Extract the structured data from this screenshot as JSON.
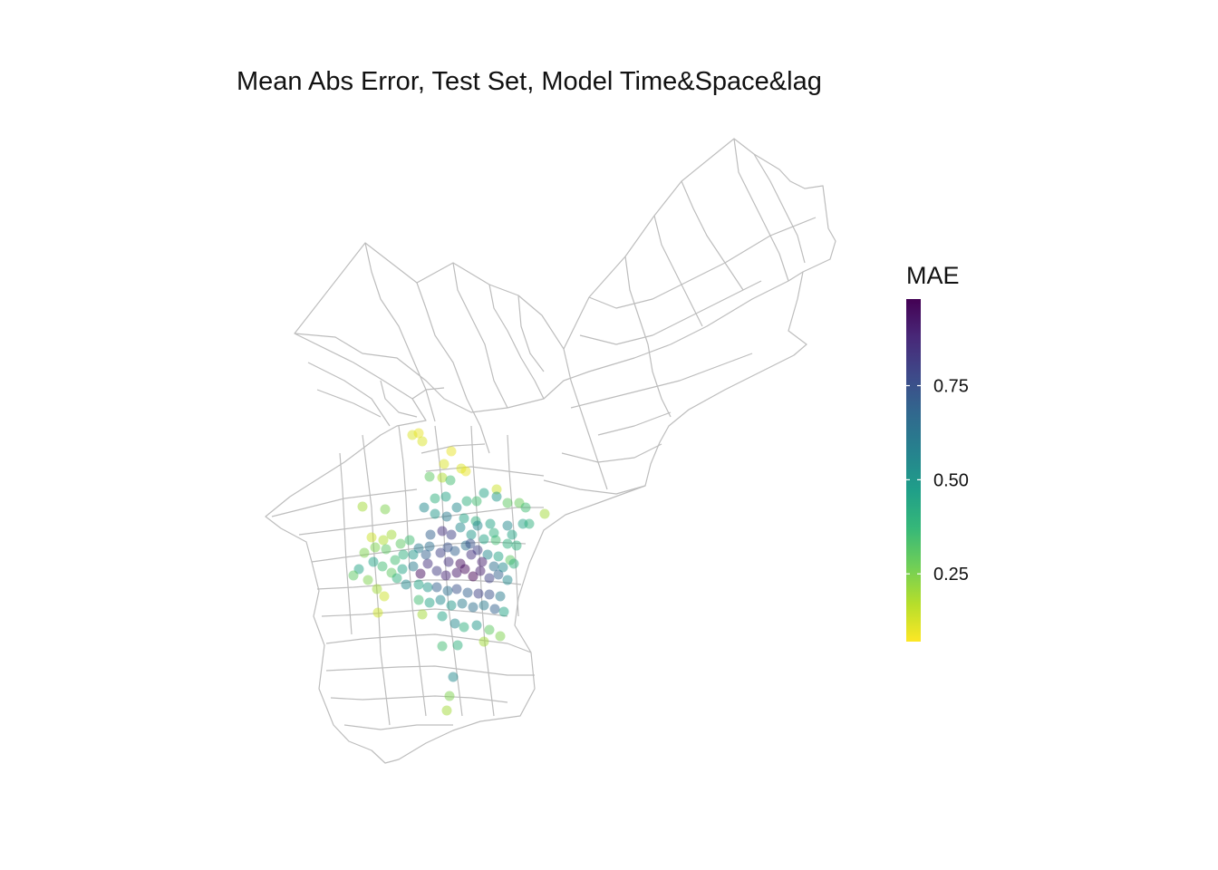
{
  "title": "Mean Abs Error, Test Set, Model Time&Space&lag",
  "legend": {
    "title": "MAE",
    "min": 0.07,
    "max": 0.98,
    "ticks": [
      {
        "value": 0.25,
        "label": "0.25"
      },
      {
        "value": 0.5,
        "label": "0.50"
      },
      {
        "value": 0.75,
        "label": "0.75"
      }
    ],
    "palette": [
      "#fde725",
      "#b5de2b",
      "#6ece58",
      "#35b779",
      "#1f9e89",
      "#26828e",
      "#31688e",
      "#3e4989",
      "#482878",
      "#440154"
    ]
  },
  "map": {
    "boundary_color": "#bdbdbd",
    "point_opacity": 0.5
  },
  "points": [
    [
      455,
      480,
      0.12
    ],
    [
      462,
      478,
      0.1
    ],
    [
      466,
      487,
      0.12
    ],
    [
      498,
      498,
      0.1
    ],
    [
      490,
      512,
      0.12
    ],
    [
      509,
      517,
      0.12
    ],
    [
      514,
      520,
      0.1
    ],
    [
      488,
      527,
      0.18
    ],
    [
      474,
      526,
      0.3
    ],
    [
      497,
      530,
      0.35
    ],
    [
      548,
      540,
      0.14
    ],
    [
      534,
      544,
      0.45
    ],
    [
      548,
      548,
      0.5
    ],
    [
      515,
      553,
      0.4
    ],
    [
      526,
      553,
      0.35
    ],
    [
      504,
      560,
      0.55
    ],
    [
      560,
      555,
      0.3
    ],
    [
      573,
      555,
      0.28
    ],
    [
      580,
      560,
      0.35
    ],
    [
      601,
      567,
      0.2
    ],
    [
      468,
      560,
      0.55
    ],
    [
      480,
      567,
      0.5
    ],
    [
      493,
      570,
      0.6
    ],
    [
      512,
      572,
      0.45
    ],
    [
      525,
      575,
      0.4
    ],
    [
      541,
      578,
      0.45
    ],
    [
      560,
      580,
      0.55
    ],
    [
      577,
      578,
      0.45
    ],
    [
      584,
      578,
      0.4
    ],
    [
      400,
      559,
      0.2
    ],
    [
      425,
      562,
      0.25
    ],
    [
      475,
      590,
      0.7
    ],
    [
      488,
      586,
      0.85
    ],
    [
      498,
      590,
      0.8
    ],
    [
      508,
      582,
      0.55
    ],
    [
      520,
      590,
      0.5
    ],
    [
      534,
      595,
      0.45
    ],
    [
      547,
      596,
      0.35
    ],
    [
      560,
      600,
      0.4
    ],
    [
      570,
      602,
      0.4
    ],
    [
      410,
      593,
      0.14
    ],
    [
      423,
      596,
      0.18
    ],
    [
      432,
      590,
      0.2
    ],
    [
      442,
      600,
      0.3
    ],
    [
      452,
      596,
      0.35
    ],
    [
      462,
      605,
      0.6
    ],
    [
      474,
      603,
      0.65
    ],
    [
      486,
      610,
      0.8
    ],
    [
      494,
      604,
      0.75
    ],
    [
      502,
      608,
      0.7
    ],
    [
      514,
      602,
      0.65
    ],
    [
      527,
      607,
      0.8
    ],
    [
      538,
      612,
      0.55
    ],
    [
      550,
      614,
      0.45
    ],
    [
      563,
      618,
      0.3
    ],
    [
      402,
      610,
      0.25
    ],
    [
      412,
      620,
      0.45
    ],
    [
      422,
      625,
      0.35
    ],
    [
      432,
      632,
      0.3
    ],
    [
      444,
      628,
      0.45
    ],
    [
      456,
      625,
      0.6
    ],
    [
      464,
      633,
      0.95
    ],
    [
      472,
      622,
      0.85
    ],
    [
      482,
      630,
      0.82
    ],
    [
      492,
      635,
      0.88
    ],
    [
      504,
      632,
      0.92
    ],
    [
      513,
      628,
      0.96
    ],
    [
      522,
      636,
      0.98
    ],
    [
      530,
      630,
      0.9
    ],
    [
      540,
      638,
      0.8
    ],
    [
      550,
      634,
      0.7
    ],
    [
      560,
      640,
      0.55
    ],
    [
      396,
      628,
      0.45
    ],
    [
      390,
      635,
      0.3
    ],
    [
      406,
      640,
      0.25
    ],
    [
      416,
      650,
      0.2
    ],
    [
      424,
      658,
      0.14
    ],
    [
      438,
      638,
      0.4
    ],
    [
      448,
      645,
      0.55
    ],
    [
      462,
      645,
      0.45
    ],
    [
      472,
      648,
      0.5
    ],
    [
      482,
      648,
      0.7
    ],
    [
      494,
      652,
      0.65
    ],
    [
      504,
      650,
      0.75
    ],
    [
      516,
      654,
      0.7
    ],
    [
      528,
      655,
      0.8
    ],
    [
      540,
      656,
      0.75
    ],
    [
      552,
      658,
      0.6
    ],
    [
      462,
      662,
      0.35
    ],
    [
      474,
      665,
      0.45
    ],
    [
      486,
      662,
      0.55
    ],
    [
      498,
      668,
      0.5
    ],
    [
      510,
      666,
      0.6
    ],
    [
      522,
      670,
      0.65
    ],
    [
      534,
      668,
      0.6
    ],
    [
      546,
      672,
      0.7
    ],
    [
      556,
      675,
      0.45
    ],
    [
      466,
      678,
      0.2
    ],
    [
      488,
      680,
      0.45
    ],
    [
      502,
      688,
      0.55
    ],
    [
      512,
      692,
      0.4
    ],
    [
      526,
      690,
      0.5
    ],
    [
      540,
      695,
      0.3
    ],
    [
      552,
      702,
      0.25
    ],
    [
      417,
      676,
      0.14
    ],
    [
      488,
      713,
      0.35
    ],
    [
      505,
      712,
      0.4
    ],
    [
      534,
      708,
      0.2
    ],
    [
      500,
      747,
      0.55
    ],
    [
      496,
      768,
      0.25
    ],
    [
      493,
      784,
      0.2
    ],
    [
      445,
      612,
      0.4
    ],
    [
      436,
      618,
      0.35
    ],
    [
      520,
      612,
      0.85
    ],
    [
      532,
      620,
      0.9
    ],
    [
      508,
      622,
      0.95
    ],
    [
      495,
      620,
      0.85
    ],
    [
      545,
      625,
      0.65
    ],
    [
      555,
      626,
      0.55
    ],
    [
      567,
      622,
      0.4
    ],
    [
      470,
      612,
      0.7
    ],
    [
      456,
      612,
      0.5
    ],
    [
      426,
      606,
      0.3
    ],
    [
      414,
      604,
      0.25
    ],
    [
      519,
      600,
      0.75
    ],
    [
      527,
      580,
      0.55
    ],
    [
      545,
      588,
      0.4
    ],
    [
      565,
      590,
      0.45
    ],
    [
      480,
      550,
      0.4
    ],
    [
      492,
      548,
      0.45
    ]
  ]
}
